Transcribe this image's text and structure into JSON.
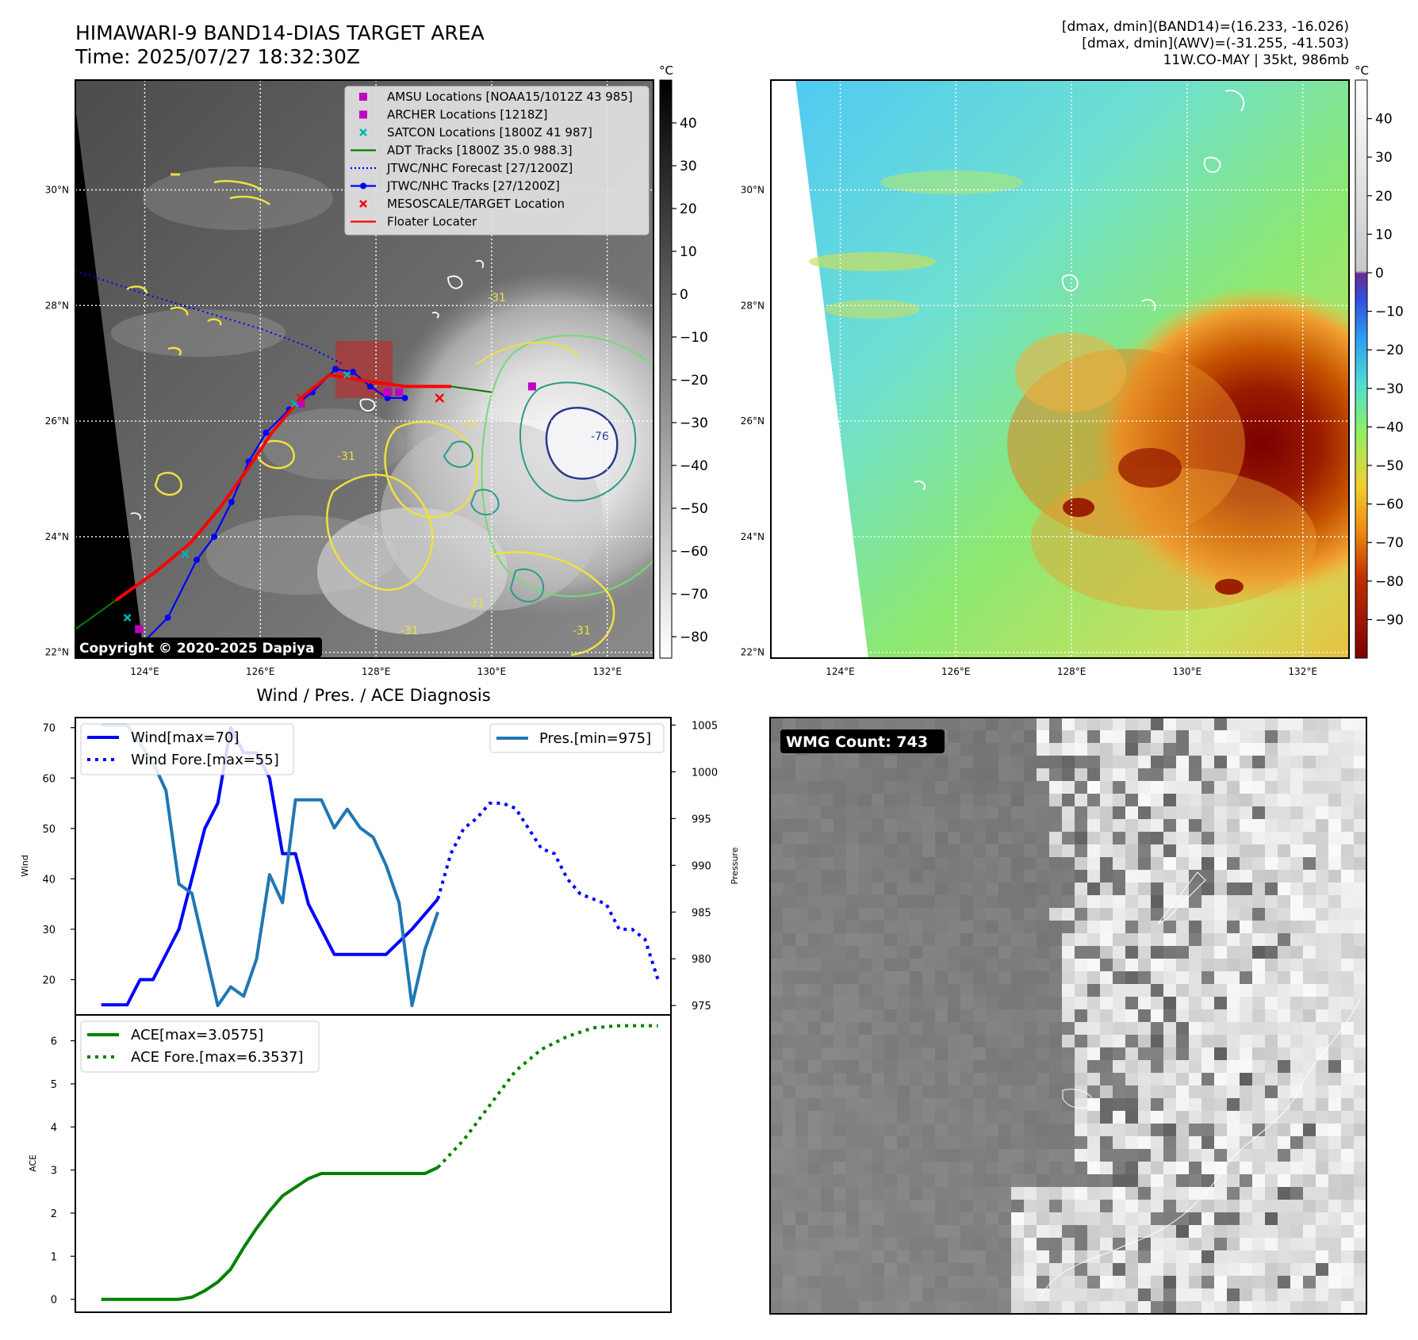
{
  "header": {
    "title": "HIMAWARI-9 BAND14-DIAS TARGET AREA",
    "time": "Time: 2025/07/27 18:32:30Z",
    "dmax_band14": "[dmax, dmin](BAND14)=(16.233, -16.026)",
    "dmax_awv": "[dmax, dmin](AWV)=(-31.255, -41.503)",
    "storm": "11W.CO-MAY | 35kt, 986mb"
  },
  "map": {
    "lat_labels": [
      "30°N",
      "28°N",
      "26°N",
      "24°N",
      "22°N"
    ],
    "lat_values": [
      30,
      28,
      26,
      24,
      22
    ],
    "lon_labels": [
      "124°E",
      "126°E",
      "128°E",
      "130°E",
      "132°E"
    ],
    "lon_values": [
      124,
      126,
      128,
      130,
      132
    ],
    "lon_range": [
      122.8,
      132.8
    ],
    "lat_range": [
      21.9,
      31.9
    ],
    "copyright": "Copyright © 2020-2025 Dapiya",
    "contour_labels": [
      "-31",
      "-31",
      "-31",
      "-31",
      "-31",
      "-31",
      "-76"
    ],
    "legend": [
      {
        "label": "AMSU Locations [NOAA15/1012Z 43 985]",
        "marker": "square",
        "color": "#c000c0"
      },
      {
        "label": "ARCHER Locations [1218Z]",
        "marker": "square",
        "color": "#c000c0"
      },
      {
        "label": "SATCON Locations [1800Z 41 987]",
        "marker": "x",
        "color": "#00b4b4"
      },
      {
        "label": "ADT Tracks [1800Z 35.0 988.3]",
        "marker": "line",
        "color": "#008000"
      },
      {
        "label": "JTWC/NHC Forecast [27/1200Z]",
        "marker": "dotted",
        "color": "#0000ff"
      },
      {
        "label": "JTWC/NHC Tracks [27/1200Z]",
        "marker": "line-dot",
        "color": "#0000ff"
      },
      {
        "label": "MESOSCALE/TARGET Location",
        "marker": "x",
        "color": "#ff0000"
      },
      {
        "label": "Floater Locater",
        "marker": "line",
        "color": "#ff0000"
      }
    ],
    "track": {
      "jtwc": [
        [
          124.0,
          22.2
        ],
        [
          124.4,
          22.6
        ],
        [
          124.9,
          23.6
        ],
        [
          125.2,
          24.0
        ],
        [
          125.5,
          24.6
        ],
        [
          125.8,
          25.3
        ],
        [
          126.1,
          25.8
        ],
        [
          126.5,
          26.2
        ],
        [
          126.9,
          26.5
        ],
        [
          127.3,
          26.9
        ],
        [
          127.6,
          26.85
        ],
        [
          127.9,
          26.6
        ],
        [
          128.2,
          26.4
        ],
        [
          128.5,
          26.4
        ]
      ],
      "forecast": [
        [
          122.8,
          28.6
        ],
        [
          124.0,
          28.2
        ],
        [
          125.0,
          27.9
        ],
        [
          126.0,
          27.6
        ],
        [
          126.8,
          27.3
        ],
        [
          127.4,
          27.0
        ]
      ],
      "adt": [
        [
          122.8,
          22.4
        ],
        [
          123.5,
          22.9
        ],
        [
          124.2,
          23.4
        ],
        [
          124.8,
          23.9
        ],
        [
          125.3,
          24.5
        ],
        [
          125.8,
          25.2
        ],
        [
          126.2,
          25.8
        ],
        [
          126.7,
          26.4
        ],
        [
          127.2,
          26.8
        ],
        [
          127.8,
          26.7
        ],
        [
          128.5,
          26.6
        ],
        [
          129.3,
          26.6
        ],
        [
          130.0,
          26.5
        ]
      ],
      "amsu": [
        [
          123.9,
          22.4
        ],
        [
          126.7,
          26.3
        ],
        [
          128.2,
          26.5
        ],
        [
          128.4,
          26.5
        ],
        [
          130.7,
          26.6
        ]
      ],
      "satcon": [
        [
          123.7,
          22.6
        ],
        [
          124.7,
          23.7
        ],
        [
          126.6,
          26.3
        ],
        [
          127.5,
          26.8
        ]
      ],
      "target": [
        [
          126.7,
          26.4
        ],
        [
          129.1,
          26.4
        ]
      ]
    }
  },
  "colorbar_left": {
    "unit": "°C",
    "ticks": [
      "40",
      "30",
      "20",
      "10",
      "0",
      "−10",
      "−20",
      "−30",
      "−40",
      "−50",
      "−60",
      "−70",
      "−80"
    ],
    "tick_values": [
      40,
      30,
      20,
      10,
      0,
      -10,
      -20,
      -30,
      -40,
      -50,
      -60,
      -70,
      -80
    ],
    "range": [
      -85,
      50
    ]
  },
  "colorbar_right": {
    "unit": "°C",
    "ticks": [
      "40",
      "30",
      "20",
      "10",
      "0",
      "−10",
      "−20",
      "−30",
      "−40",
      "−50",
      "−60",
      "−70",
      "−80",
      "−90"
    ],
    "tick_values": [
      40,
      30,
      20,
      10,
      0,
      -10,
      -20,
      -30,
      -40,
      -50,
      -60,
      -70,
      -80,
      -90
    ],
    "range": [
      -100,
      50
    ]
  },
  "wmg": {
    "label": "WMG Count: 743"
  },
  "chart_data": [
    {
      "type": "line",
      "title": "Wind / Pres. / ACE Diagnosis",
      "xlabel": "",
      "ylabel": "Wind",
      "ylabel_right": "Pressure",
      "ylim": [
        13,
        72
      ],
      "ylim_right": [
        974,
        1005.8
      ],
      "y_ticks": [
        20,
        30,
        40,
        50,
        60,
        70
      ],
      "y_ticks_right": [
        975,
        980,
        985,
        990,
        995,
        1000,
        1005
      ],
      "x_range": [
        0,
        46
      ],
      "series": [
        {
          "name": "Wind[max=70]",
          "axis": "left",
          "style": "solid",
          "color": "#0000ff",
          "x": [
            2,
            4,
            5,
            6,
            7,
            8,
            9,
            10,
            11,
            12,
            13,
            14,
            15,
            16,
            17,
            18,
            19,
            20,
            22,
            24,
            26,
            28
          ],
          "values": [
            15,
            15,
            20,
            20,
            25,
            30,
            40,
            50,
            55,
            70,
            65,
            65,
            60,
            45,
            45,
            35,
            30,
            25,
            25,
            25,
            30,
            36
          ]
        },
        {
          "name": "Wind Fore.[max=55]",
          "axis": "left",
          "style": "dotted",
          "color": "#0000ff",
          "x": [
            28,
            29,
            30,
            31,
            32,
            33,
            34,
            35,
            36,
            37,
            38,
            39,
            40,
            41,
            42,
            43,
            44,
            45
          ],
          "values": [
            36,
            45,
            50,
            52,
            55,
            55,
            54,
            50,
            46,
            45,
            40,
            37,
            36,
            35,
            30,
            30,
            28,
            20
          ]
        },
        {
          "name": "Pres.[min=975]",
          "axis": "right",
          "style": "solid",
          "color": "#1f77b4",
          "x": [
            2,
            3,
            4,
            5,
            6,
            7,
            8,
            9,
            10,
            11,
            12,
            13,
            14,
            15,
            16,
            17,
            18,
            19,
            20,
            21,
            22,
            23,
            24,
            25,
            26,
            27,
            28
          ],
          "values": [
            1005,
            1005,
            1005,
            1003,
            1001,
            998,
            988,
            987,
            981,
            975,
            977,
            976,
            980,
            989,
            986,
            997,
            997,
            997,
            994,
            996,
            994,
            993,
            990,
            986,
            975,
            981,
            985
          ]
        }
      ]
    },
    {
      "type": "line",
      "title": "",
      "xlabel": "",
      "ylabel": "ACE",
      "ylim": [
        -0.3,
        6.6
      ],
      "y_ticks": [
        0,
        1,
        2,
        3,
        4,
        5,
        6
      ],
      "x_range": [
        0,
        46
      ],
      "series": [
        {
          "name": "ACE[max=3.0575]",
          "style": "solid",
          "color": "#008000",
          "x": [
            2,
            4,
            6,
            8,
            9,
            10,
            11,
            12,
            13,
            14,
            15,
            16,
            17,
            18,
            19,
            20,
            22,
            24,
            26,
            27,
            28
          ],
          "values": [
            0,
            0,
            0,
            0,
            0.05,
            0.2,
            0.4,
            0.7,
            1.2,
            1.65,
            2.05,
            2.4,
            2.6,
            2.8,
            2.92,
            2.92,
            2.92,
            2.92,
            2.92,
            2.92,
            3.06
          ]
        },
        {
          "name": "ACE Fore.[max=6.3537]",
          "style": "dotted",
          "color": "#008000",
          "x": [
            28,
            30,
            32,
            34,
            36,
            38,
            40,
            42,
            44,
            45
          ],
          "values": [
            3.06,
            3.7,
            4.5,
            5.3,
            5.8,
            6.1,
            6.3,
            6.35,
            6.35,
            6.35
          ]
        }
      ]
    }
  ]
}
